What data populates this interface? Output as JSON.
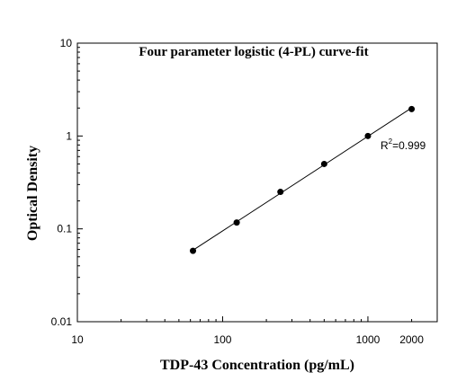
{
  "chart_data": {
    "type": "scatter",
    "title": "Four parameter logistic (4-PL) curve-fit",
    "xlabel": "TDP-43  Concentration (pg/mL)",
    "ylabel": "Optical Density",
    "x_scale": "log",
    "y_scale": "log",
    "xlim": [
      10,
      3000
    ],
    "ylim": [
      0.01,
      10
    ],
    "x_ticks": [
      10,
      100,
      1000,
      2000
    ],
    "x_tick_labels": [
      "10",
      "100",
      "1000",
      "2000"
    ],
    "y_ticks": [
      0.01,
      0.1,
      1,
      10
    ],
    "y_tick_labels": [
      "0.01",
      "0.1",
      "1",
      "10"
    ],
    "grid": false,
    "series": [
      {
        "x": [
          62.5,
          125,
          250,
          500,
          1000,
          2000
        ],
        "y": [
          0.058,
          0.117,
          0.25,
          0.5,
          1.0,
          1.95
        ]
      }
    ],
    "annotation": {
      "text_main": "R",
      "text_sup": "2",
      "text_rest": "=0.999"
    }
  }
}
